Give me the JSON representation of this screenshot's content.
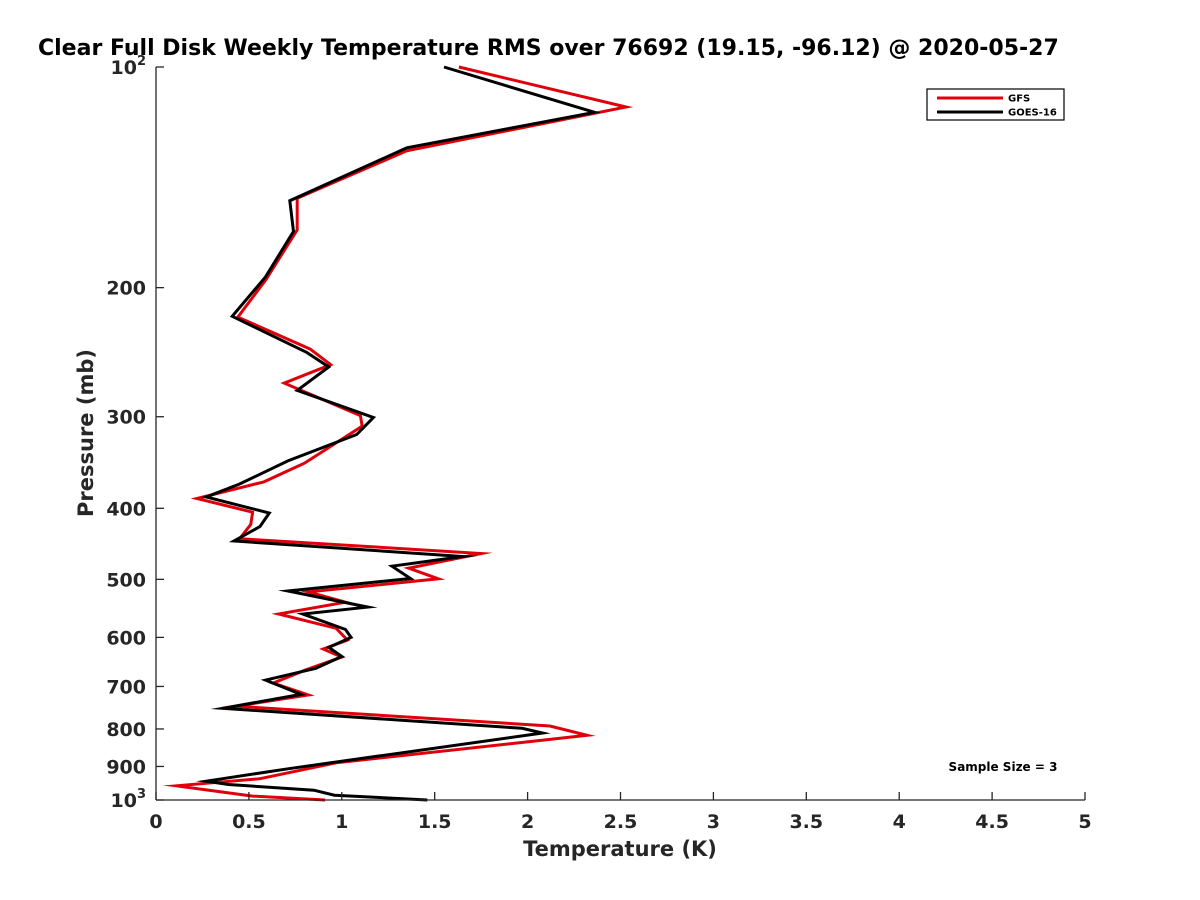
{
  "chart_data": {
    "type": "line",
    "title": "Clear Full Disk Weekly Temperature RMS over 76692 (19.15, -96.12) @ 2020-05-27",
    "xlabel": "Temperature (K)",
    "ylabel": "Pressure (mb)",
    "xlim": [
      0,
      5
    ],
    "ylim": [
      100,
      1000
    ],
    "y_scale": "log",
    "y_reversed": true,
    "x_ticks": [
      "0",
      "0.5",
      "1",
      "1.5",
      "2",
      "2.5",
      "3",
      "3.5",
      "4",
      "4.5",
      "5"
    ],
    "y_ticks": [
      {
        "value": 100,
        "label": "10",
        "sup": "2"
      },
      {
        "value": 200,
        "label": "200",
        "sup": ""
      },
      {
        "value": 300,
        "label": "300",
        "sup": ""
      },
      {
        "value": 400,
        "label": "400",
        "sup": ""
      },
      {
        "value": 500,
        "label": "500",
        "sup": ""
      },
      {
        "value": 600,
        "label": "600",
        "sup": ""
      },
      {
        "value": 700,
        "label": "700",
        "sup": ""
      },
      {
        "value": 800,
        "label": "800",
        "sup": ""
      },
      {
        "value": 900,
        "label": "900",
        "sup": ""
      },
      {
        "value": 1000,
        "label": "10",
        "sup": "3"
      }
    ],
    "grid": false,
    "legend_position": "top-right",
    "annotation": "Sample Size = 3",
    "series": [
      {
        "name": "GFS",
        "color": "#e0000b",
        "points": [
          [
            1.63,
            100
          ],
          [
            2.53,
            113.4
          ],
          [
            1.35,
            130.1
          ],
          [
            0.76,
            151.0
          ],
          [
            0.76,
            166.8
          ],
          [
            0.59,
            195.3
          ],
          [
            0.44,
            219.4
          ],
          [
            0.83,
            242.6
          ],
          [
            0.94,
            254.8
          ],
          [
            0.69,
            269.9
          ],
          [
            1.1,
            298.9
          ],
          [
            1.11,
            309.1
          ],
          [
            0.8,
            347.0
          ],
          [
            0.58,
            368.1
          ],
          [
            0.22,
            387.9
          ],
          [
            0.52,
            404.9
          ],
          [
            0.51,
            420.7
          ],
          [
            0.45,
            440.1
          ],
          [
            1.75,
            461.0
          ],
          [
            1.36,
            482.6
          ],
          [
            1.52,
            499.2
          ],
          [
            0.82,
            520.1
          ],
          [
            1.02,
            537.2
          ],
          [
            0.66,
            557.5
          ],
          [
            0.97,
            583.1
          ],
          [
            1.03,
            605.2
          ],
          [
            0.9,
            622.2
          ],
          [
            1.0,
            638.4
          ],
          [
            0.8,
            665.3
          ],
          [
            0.63,
            692.7
          ],
          [
            0.82,
            719.1
          ],
          [
            0.43,
            744.9
          ],
          [
            2.12,
            792.7
          ],
          [
            2.32,
            816.2
          ],
          [
            0.97,
            889.7
          ],
          [
            0.56,
            935.2
          ],
          [
            0.11,
            956.3
          ],
          [
            0.35,
            974.9
          ],
          [
            0.52,
            987.8
          ],
          [
            0.91,
            1000
          ]
        ]
      },
      {
        "name": "GOES-16",
        "color": "#000000",
        "points": [
          [
            1.55,
            100
          ],
          [
            2.36,
            115.3
          ],
          [
            1.35,
            128.9
          ],
          [
            0.72,
            152.2
          ],
          [
            0.74,
            167.6
          ],
          [
            0.59,
            193.3
          ],
          [
            0.41,
            218.8
          ],
          [
            0.81,
            245.0
          ],
          [
            0.93,
            256.6
          ],
          [
            0.76,
            276.2
          ],
          [
            1.17,
            300.7
          ],
          [
            1.08,
            317.2
          ],
          [
            0.71,
            344.6
          ],
          [
            0.45,
            370.6
          ],
          [
            0.27,
            386.0
          ],
          [
            0.61,
            405.9
          ],
          [
            0.56,
            423.5
          ],
          [
            0.42,
            443.2
          ],
          [
            1.65,
            465.4
          ],
          [
            1.27,
            479.8
          ],
          [
            1.37,
            498.6
          ],
          [
            0.71,
            518.7
          ],
          [
            1.14,
            545.6
          ],
          [
            0.79,
            557.5
          ],
          [
            1.02,
            585.4
          ],
          [
            1.05,
            600.0
          ],
          [
            0.93,
            619.1
          ],
          [
            1.0,
            637.1
          ],
          [
            0.86,
            661.2
          ],
          [
            0.59,
            686.2
          ],
          [
            0.78,
            717.6
          ],
          [
            0.36,
            749.6
          ],
          [
            1.97,
            798.4
          ],
          [
            2.08,
            810.2
          ],
          [
            0.71,
            906.7
          ],
          [
            0.27,
            942.6
          ],
          [
            0.39,
            952.6
          ],
          [
            0.85,
            969.7
          ],
          [
            0.96,
            984.9
          ],
          [
            1.46,
            1000
          ]
        ]
      }
    ]
  }
}
